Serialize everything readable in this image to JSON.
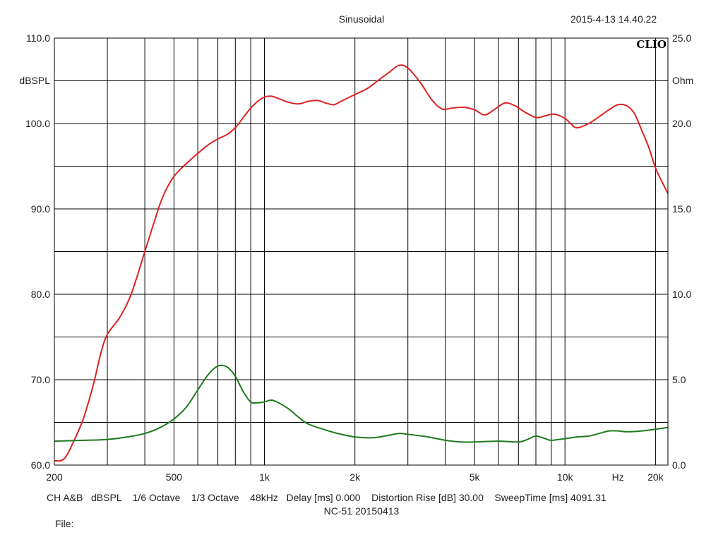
{
  "header": {
    "title": "Sinusoidal",
    "datetime": "2015-4-13 14.40.22"
  },
  "logo": "CLIO",
  "footer": {
    "settings": "CH A&B   dBSPL    1/6 Octave    1/3 Octave    48kHz   Delay [ms] 0.000    Distortion Rise [dB] 30.00    SweepTime [ms] 4091.31",
    "measurement": "NC-51  20150413",
    "file_label": "File:"
  },
  "colors": {
    "spl": "#dd2222",
    "impedance": "#1e7a1e",
    "grid": "#000000"
  },
  "chart_data": {
    "type": "line",
    "title": "Sinusoidal",
    "x_scale": "log",
    "xlim": [
      200,
      22000
    ],
    "x_ticks": [
      {
        "v": 200,
        "label": "200"
      },
      {
        "v": 500,
        "label": "500"
      },
      {
        "v": 1000,
        "label": "1k"
      },
      {
        "v": 2000,
        "label": "2k"
      },
      {
        "v": 5000,
        "label": "5k"
      },
      {
        "v": 10000,
        "label": "10k"
      },
      {
        "v": 15000,
        "label": "Hz"
      },
      {
        "v": 20000,
        "label": "20k"
      }
    ],
    "x_grid": [
      300,
      400,
      500,
      600,
      700,
      800,
      900,
      1000,
      2000,
      3000,
      4000,
      5000,
      6000,
      7000,
      8000,
      9000,
      10000,
      20000
    ],
    "y_left": {
      "label": "dBSPL",
      "lim": [
        60,
        110
      ],
      "ticks": [
        {
          "v": 110,
          "label": "110.0"
        },
        {
          "v": 100,
          "label": "100.0"
        },
        {
          "v": 90,
          "label": "90.0"
        },
        {
          "v": 80,
          "label": "80.0"
        },
        {
          "v": 70,
          "label": "70.0"
        },
        {
          "v": 60,
          "label": "60.0"
        }
      ]
    },
    "y_right": {
      "label": "Ohm",
      "lim": [
        0,
        25
      ],
      "ticks": [
        {
          "v": 25,
          "label": "25.0"
        },
        {
          "v": 20,
          "label": "20.0"
        },
        {
          "v": 15,
          "label": "15.0"
        },
        {
          "v": 10,
          "label": "10.0"
        },
        {
          "v": 5,
          "label": "5.0"
        },
        {
          "v": 0,
          "label": "0.0"
        }
      ]
    },
    "grid": true,
    "series": [
      {
        "axis": "left",
        "color": "#dd2222",
        "points": [
          [
            200,
            60.5
          ],
          [
            215,
            60.7
          ],
          [
            230,
            62.5
          ],
          [
            250,
            65.5
          ],
          [
            270,
            69.5
          ],
          [
            285,
            73
          ],
          [
            300,
            75.3
          ],
          [
            330,
            77.3
          ],
          [
            360,
            80
          ],
          [
            400,
            85
          ],
          [
            430,
            88.5
          ],
          [
            460,
            91.5
          ],
          [
            500,
            93.8
          ],
          [
            550,
            95.3
          ],
          [
            600,
            96.5
          ],
          [
            650,
            97.5
          ],
          [
            700,
            98.2
          ],
          [
            750,
            98.7
          ],
          [
            800,
            99.5
          ],
          [
            850,
            100.7
          ],
          [
            900,
            101.8
          ],
          [
            950,
            102.6
          ],
          [
            1000,
            103.1
          ],
          [
            1050,
            103.2
          ],
          [
            1100,
            103
          ],
          [
            1200,
            102.5
          ],
          [
            1300,
            102.3
          ],
          [
            1400,
            102.6
          ],
          [
            1500,
            102.7
          ],
          [
            1600,
            102.4
          ],
          [
            1700,
            102.2
          ],
          [
            1800,
            102.6
          ],
          [
            2000,
            103.4
          ],
          [
            2200,
            104.1
          ],
          [
            2400,
            105.1
          ],
          [
            2600,
            106
          ],
          [
            2800,
            106.8
          ],
          [
            3000,
            106.5
          ],
          [
            3300,
            104.8
          ],
          [
            3600,
            102.8
          ],
          [
            3900,
            101.7
          ],
          [
            4200,
            101.8
          ],
          [
            4600,
            101.9
          ],
          [
            5000,
            101.6
          ],
          [
            5400,
            101
          ],
          [
            5800,
            101.6
          ],
          [
            6300,
            102.4
          ],
          [
            6800,
            102.1
          ],
          [
            7300,
            101.4
          ],
          [
            8000,
            100.7
          ],
          [
            8600,
            100.9
          ],
          [
            9200,
            101.1
          ],
          [
            10000,
            100.6
          ],
          [
            10500,
            99.9
          ],
          [
            11000,
            99.5
          ],
          [
            12000,
            100
          ],
          [
            13000,
            100.8
          ],
          [
            14000,
            101.6
          ],
          [
            15000,
            102.2
          ],
          [
            16000,
            102.1
          ],
          [
            17000,
            101.2
          ],
          [
            18000,
            99.2
          ],
          [
            19000,
            97.2
          ],
          [
            20000,
            94.8
          ],
          [
            21000,
            93.2
          ],
          [
            22000,
            91.8
          ]
        ]
      },
      {
        "axis": "right",
        "color": "#1e7a1e",
        "points": [
          [
            200,
            1.4
          ],
          [
            250,
            1.45
          ],
          [
            300,
            1.5
          ],
          [
            350,
            1.65
          ],
          [
            400,
            1.85
          ],
          [
            450,
            2.2
          ],
          [
            500,
            2.7
          ],
          [
            550,
            3.4
          ],
          [
            600,
            4.4
          ],
          [
            650,
            5.3
          ],
          [
            700,
            5.8
          ],
          [
            750,
            5.75
          ],
          [
            800,
            5.2
          ],
          [
            850,
            4.3
          ],
          [
            900,
            3.7
          ],
          [
            950,
            3.65
          ],
          [
            1000,
            3.7
          ],
          [
            1050,
            3.8
          ],
          [
            1100,
            3.7
          ],
          [
            1200,
            3.3
          ],
          [
            1300,
            2.8
          ],
          [
            1400,
            2.4
          ],
          [
            1600,
            2.05
          ],
          [
            1800,
            1.8
          ],
          [
            2000,
            1.65
          ],
          [
            2300,
            1.6
          ],
          [
            2600,
            1.75
          ],
          [
            2800,
            1.85
          ],
          [
            3000,
            1.8
          ],
          [
            3500,
            1.65
          ],
          [
            4000,
            1.45
          ],
          [
            4500,
            1.35
          ],
          [
            5000,
            1.35
          ],
          [
            6000,
            1.4
          ],
          [
            7000,
            1.35
          ],
          [
            7500,
            1.5
          ],
          [
            8000,
            1.7
          ],
          [
            8600,
            1.55
          ],
          [
            9000,
            1.45
          ],
          [
            10000,
            1.55
          ],
          [
            11000,
            1.65
          ],
          [
            12000,
            1.7
          ],
          [
            13000,
            1.85
          ],
          [
            14000,
            2.0
          ],
          [
            15000,
            2.0
          ],
          [
            16000,
            1.95
          ],
          [
            18000,
            2.0
          ],
          [
            20000,
            2.1
          ],
          [
            22000,
            2.2
          ]
        ]
      }
    ]
  }
}
